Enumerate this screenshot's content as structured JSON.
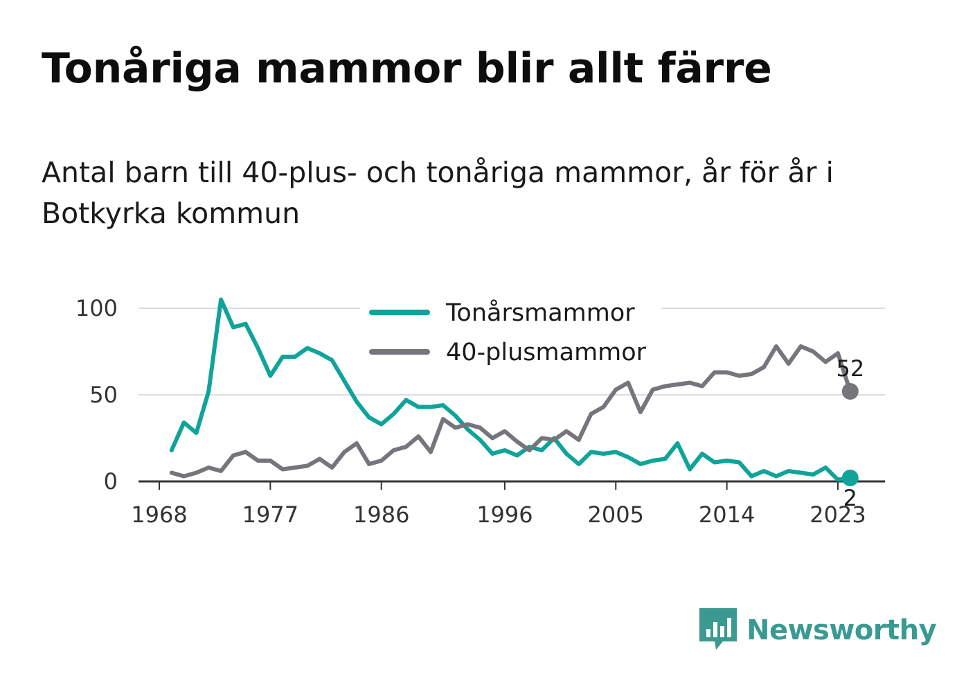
{
  "title": "Tonåriga mammor blir allt färre",
  "subtitle": "Antal barn till 40-plus- och tonåriga mammor, år för år i Botkyrka kommun",
  "brand": {
    "name": "Newsworthy"
  },
  "colors": {
    "teen": "#0fa39a",
    "forty": "#76757c",
    "grid": "#dddddd",
    "axis": "#333333"
  },
  "chart_data": {
    "type": "line",
    "title": "Tonåriga mammor blir allt färre",
    "subtitle": "Antal barn till 40-plus- och tonåriga mammor, år för år i Botkyrka kommun",
    "xlabel": "",
    "ylabel": "",
    "xlim": [
      1968,
      2024
    ],
    "ylim": [
      0,
      100
    ],
    "x_ticks": [
      "1968",
      "1977",
      "1986",
      "1996",
      "2005",
      "2014",
      "2023"
    ],
    "y_ticks": [
      "0",
      "50",
      "100"
    ],
    "grid": "horizontal",
    "legend_position": "top-center",
    "x": [
      1969,
      1970,
      1971,
      1972,
      1973,
      1974,
      1975,
      1976,
      1977,
      1978,
      1979,
      1980,
      1981,
      1982,
      1983,
      1984,
      1985,
      1986,
      1987,
      1988,
      1989,
      1990,
      1991,
      1992,
      1993,
      1994,
      1995,
      1996,
      1997,
      1998,
      1999,
      2000,
      2001,
      2002,
      2003,
      2004,
      2005,
      2006,
      2007,
      2008,
      2009,
      2010,
      2011,
      2012,
      2013,
      2014,
      2015,
      2016,
      2017,
      2018,
      2019,
      2020,
      2021,
      2022,
      2023,
      2024
    ],
    "series": [
      {
        "name": "Tonårsmammor",
        "color": "#0fa39a",
        "end_label": "2",
        "values": [
          18,
          34,
          28,
          52,
          105,
          89,
          91,
          77,
          61,
          72,
          72,
          77,
          74,
          70,
          58,
          46,
          37,
          33,
          39,
          47,
          43,
          43,
          44,
          38,
          30,
          24,
          16,
          18,
          15,
          20,
          18,
          25,
          16,
          10,
          17,
          16,
          17,
          14,
          10,
          12,
          13,
          22,
          7,
          16,
          11,
          12,
          11,
          3,
          6,
          3,
          6,
          5,
          4,
          8,
          1,
          2
        ]
      },
      {
        "name": "40-plusmammor",
        "color": "#76757c",
        "end_label": "52",
        "values": [
          5,
          3,
          5,
          8,
          6,
          15,
          17,
          12,
          12,
          7,
          8,
          9,
          13,
          8,
          17,
          22,
          10,
          12,
          18,
          20,
          26,
          17,
          36,
          31,
          33,
          31,
          25,
          29,
          23,
          18,
          25,
          24,
          29,
          24,
          39,
          43,
          53,
          57,
          40,
          53,
          55,
          56,
          57,
          55,
          63,
          63,
          61,
          62,
          66,
          78,
          68,
          78,
          75,
          69,
          74,
          52
        ]
      }
    ]
  }
}
